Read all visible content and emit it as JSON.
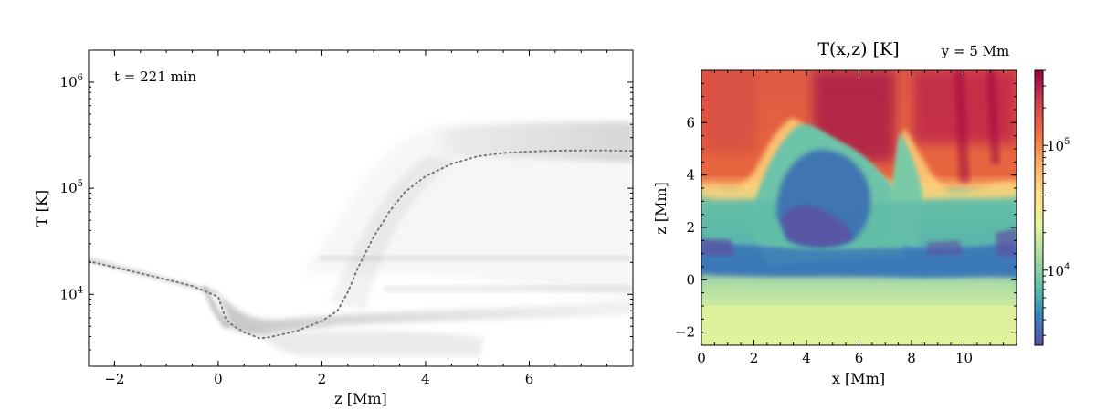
{
  "chart_data": [
    {
      "type": "line",
      "xlabel": "z [Mm]",
      "ylabel": "T [K]",
      "annotation": "t = 221 min",
      "xlim": [
        -2.5,
        8
      ],
      "ylim": [
        2100,
        2000000
      ],
      "y_scale": "log",
      "x_ticks": [
        -2,
        0,
        2,
        4,
        6
      ],
      "x_tick_labels": [
        "−2",
        "0",
        "2",
        "4",
        "6"
      ],
      "y_ticks": [
        10000,
        100000,
        1000000
      ],
      "y_tick_labels": [
        {
          "base": "10",
          "exp": "4"
        },
        {
          "base": "10",
          "exp": "5"
        },
        {
          "base": "10",
          "exp": "6"
        }
      ],
      "series": [
        {
          "style": "dotted",
          "color": "#777777",
          "x": [
            -2.5,
            -2.0,
            -1.5,
            -1.0,
            -0.5,
            0.0,
            0.15,
            0.3,
            0.5,
            0.8,
            1.0,
            1.5,
            2.0,
            2.3,
            2.5,
            2.7,
            3.0,
            3.3,
            3.6,
            4.0,
            4.5,
            5.0,
            5.5,
            6.0,
            6.5,
            7.0,
            7.5,
            8.0
          ],
          "y": [
            20500,
            18000,
            15800,
            13800,
            12000,
            9500,
            5800,
            5000,
            4400,
            3850,
            3950,
            4500,
            5600,
            7000,
            10500,
            18000,
            35000,
            60000,
            92000,
            130000,
            170000,
            200000,
            215000,
            222000,
            226000,
            227000,
            227000,
            225000
          ]
        }
      ],
      "density_background": "grayscale 2D histogram of T vs z"
    },
    {
      "type": "heatmap",
      "title": "T(x,z) [K]",
      "subtitle": "y = 5 Mm",
      "xlabel": "x [Mm]",
      "ylabel": "z [Mm]",
      "xlim": [
        0,
        12
      ],
      "ylim": [
        -2.5,
        8
      ],
      "x_ticks": [
        0,
        2,
        4,
        6,
        8,
        10
      ],
      "x_tick_labels": [
        "0",
        "2",
        "4",
        "6",
        "8",
        "10"
      ],
      "y_ticks": [
        -2,
        0,
        2,
        4,
        6
      ],
      "y_tick_labels": [
        "−2",
        "0",
        "2",
        "4",
        "6"
      ],
      "colormap": "Spectral_r",
      "colorbar": {
        "scale": "log",
        "range": [
          2500,
          400000
        ],
        "ticks": [
          10000,
          100000
        ],
        "tick_labels": [
          {
            "base": "10",
            "exp": "4"
          },
          {
            "base": "10",
            "exp": "5"
          }
        ],
        "colors": [
          "#5e4fa2",
          "#3288bd",
          "#66c2a5",
          "#abdda4",
          "#e6f598",
          "#fee08b",
          "#fdae61",
          "#f46d43",
          "#d53e4f",
          "#9e0142"
        ]
      }
    }
  ]
}
